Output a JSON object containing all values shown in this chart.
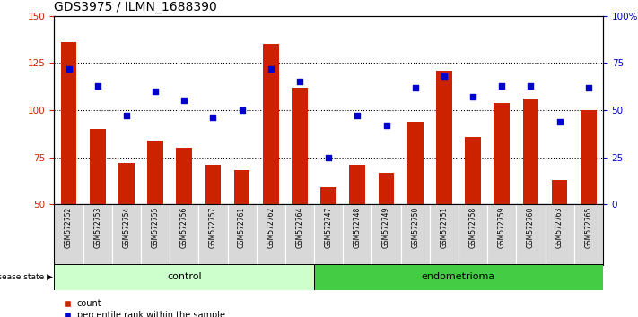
{
  "title": "GDS3975 / ILMN_1688390",
  "samples": [
    "GSM572752",
    "GSM572753",
    "GSM572754",
    "GSM572755",
    "GSM572756",
    "GSM572757",
    "GSM572761",
    "GSM572762",
    "GSM572764",
    "GSM572747",
    "GSM572748",
    "GSM572749",
    "GSM572750",
    "GSM572751",
    "GSM572758",
    "GSM572759",
    "GSM572760",
    "GSM572763",
    "GSM572765"
  ],
  "bar_values": [
    136,
    90,
    72,
    84,
    80,
    71,
    68,
    135,
    112,
    59,
    71,
    67,
    94,
    121,
    86,
    104,
    106,
    63,
    100
  ],
  "pct_values": [
    72,
    63,
    47,
    60,
    55,
    46,
    50,
    72,
    65,
    25,
    47,
    42,
    62,
    68,
    57,
    63,
    63,
    44,
    62
  ],
  "ylim_left": [
    50,
    150
  ],
  "ylim_right": [
    0,
    100
  ],
  "yticks_left": [
    50,
    75,
    100,
    125,
    150
  ],
  "yticks_right": [
    0,
    25,
    50,
    75,
    100
  ],
  "ytick_labels_right": [
    "0",
    "25",
    "50",
    "75",
    "100%"
  ],
  "bar_color": "#cc2200",
  "pct_color": "#0000cc",
  "bg_color": "#ffffff",
  "n_control": 9,
  "control_label": "control",
  "endometrioma_label": "endometrioma",
  "disease_state_label": "disease state",
  "control_bg": "#ccffcc",
  "endometrioma_bg": "#44cc44",
  "sample_bg": "#d8d8d8",
  "legend_count": "count",
  "legend_pct": "percentile rank within the sample",
  "left_label_color": "#cc2200",
  "right_label_color": "#0000cc",
  "title_fontsize": 10,
  "tick_fontsize": 7.5,
  "bar_width": 0.55
}
